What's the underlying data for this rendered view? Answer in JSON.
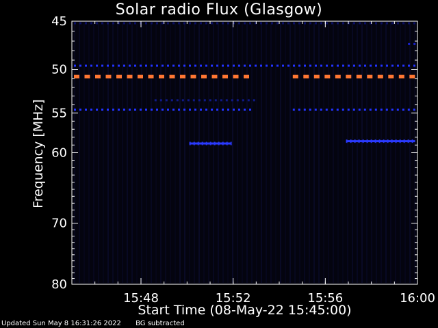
{
  "chart_data": {
    "type": "heatmap",
    "title": "Solar radio Flux (Glasgow)",
    "xlabel": "Start Time (08-May-22 15:45:00)",
    "ylabel": "Frequency [MHz]",
    "xlim": [
      "15:45",
      "16:00"
    ],
    "ylim": [
      45,
      80
    ],
    "x_ticks": [
      "15:48",
      "15:52",
      "15:56",
      "16:00"
    ],
    "y_ticks": [
      45,
      50,
      55,
      60,
      70,
      80
    ],
    "background_color": "#04040f",
    "features": [
      {
        "kind": "dashed",
        "frequency": 50.8,
        "start": "15:45",
        "end": "15:53",
        "color": "#ff7733"
      },
      {
        "kind": "dashed",
        "frequency": 50.8,
        "start": "15:54:30",
        "end": "16:00",
        "color": "#ff7733"
      },
      {
        "kind": "dashed",
        "frequency": 49.6,
        "start": "15:45",
        "end": "16:00",
        "color": "#2233ff"
      },
      {
        "kind": "dashed",
        "frequency": 54.6,
        "start": "15:45",
        "end": "15:53",
        "color": "#2233ff"
      },
      {
        "kind": "dashed",
        "frequency": 54.6,
        "start": "15:54:30",
        "end": "16:00",
        "color": "#2233ff"
      },
      {
        "kind": "dashed",
        "frequency": 53.5,
        "start": "15:48:30",
        "end": "15:53",
        "color": "#101a88"
      },
      {
        "kind": "dashed",
        "frequency": 45.2,
        "start": "15:45",
        "end": "16:00",
        "color": "#0a0f66"
      },
      {
        "kind": "dashed",
        "frequency": 47.3,
        "start": "15:59:30",
        "end": "16:00",
        "color": "#1a22cc"
      },
      {
        "kind": "segment",
        "frequency": 58.8,
        "start": "15:50:06",
        "end": "15:51:54",
        "color": "#2a3aff"
      },
      {
        "kind": "segment",
        "frequency": 58.5,
        "start": "15:56:54",
        "end": "15:59:54",
        "color": "#2a3aff"
      }
    ]
  },
  "footer": {
    "updated": "Updated Sun May  8 16:31:26 2022",
    "note": "BG subtracted"
  }
}
